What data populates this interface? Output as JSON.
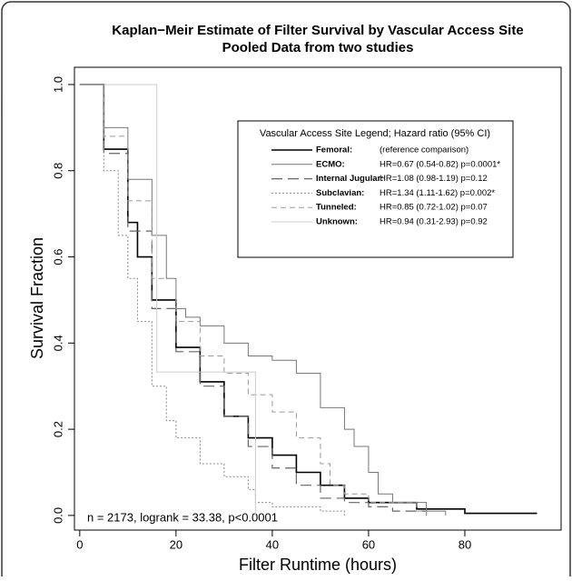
{
  "chart_data": {
    "type": "step",
    "title": "Kaplan−Meir Estimate of Filter Survival by Vascular Access Site",
    "subtitle": "Pooled Data from two studies",
    "x_label": "Filter Runtime (hours)",
    "y_label": "Survival Fraction",
    "annotation": "n = 2173, logrank = 33.38, p<0.0001",
    "legend_title": "Vascular Access Site Legend; Hazard ratio (95% CI)",
    "legend_position": "upper right",
    "xlim": [
      -1.1,
      100
    ],
    "xticks": [
      0,
      20,
      40,
      60,
      80
    ],
    "ylim": [
      -0.034,
      1.04
    ],
    "yticks": [
      {
        "value": 0,
        "label": "0.0"
      },
      {
        "value": 0.2,
        "label": "0.2"
      },
      {
        "value": 0.4,
        "label": "0.4"
      },
      {
        "value": 0.6,
        "label": "0.6"
      },
      {
        "value": 0.8,
        "label": "0.8"
      },
      {
        "value": 1,
        "label": "1.0"
      }
    ],
    "series": [
      {
        "name": "Femoral:",
        "hr": "(reference comparison)",
        "color": "#000000",
        "width": 1.6,
        "dash": "none",
        "x": [
          0,
          5,
          10,
          12,
          15,
          20,
          25,
          30,
          35,
          40,
          45,
          50,
          55,
          60,
          70,
          80,
          95
        ],
        "values": [
          1,
          0.85,
          0.68,
          0.6,
          0.5,
          0.39,
          0.31,
          0.23,
          0.18,
          0.14,
          0.1,
          0.07,
          0.04,
          0.03,
          0.015,
          0.005,
          0.005
        ]
      },
      {
        "name": "ECMO:",
        "hr": "HR=0.67 (0.54-0.82) p=0.0001*",
        "color": "#777777",
        "width": 1,
        "dash": "none",
        "x": [
          0,
          5,
          10,
          15,
          18,
          20,
          22,
          25,
          30,
          35,
          40,
          45,
          50,
          55,
          57,
          60,
          62,
          65,
          72,
          76
        ],
        "values": [
          1,
          0.9,
          0.78,
          0.65,
          0.55,
          0.48,
          0.46,
          0.44,
          0.4,
          0.37,
          0.36,
          0.33,
          0.25,
          0.2,
          0.16,
          0.1,
          0.05,
          0.03,
          0.01,
          0
        ]
      },
      {
        "name": "Internal Jugular:",
        "hr": "HR=1.08 (0.98-1.19) p=0.12",
        "color": "#666666",
        "width": 1.2,
        "dash": "12 6",
        "x": [
          0,
          5,
          10,
          15,
          20,
          25,
          30,
          35,
          40,
          45,
          50,
          55,
          60,
          65,
          72
        ],
        "values": [
          1,
          0.84,
          0.66,
          0.48,
          0.38,
          0.3,
          0.23,
          0.16,
          0.11,
          0.07,
          0.04,
          0.03,
          0.02,
          0.01,
          0
        ]
      },
      {
        "name": "Subclavian:",
        "hr": "HR=1.34 (1.11-1.62) p=0.002*",
        "color": "#888888",
        "width": 1,
        "dash": "2 2",
        "x": [
          0,
          5,
          8,
          10,
          12,
          15,
          18,
          20,
          25,
          30,
          35,
          36.5,
          40,
          50,
          55
        ],
        "values": [
          1,
          0.8,
          0.65,
          0.55,
          0.45,
          0.3,
          0.22,
          0.18,
          0.12,
          0.09,
          0.06,
          0.03,
          0.02,
          0.01,
          0
        ]
      },
      {
        "name": "Tunneled:",
        "hr": "HR=0.85 (0.72-1.02) p=0.07",
        "color": "#999999",
        "width": 1,
        "dash": "6 4",
        "x": [
          0,
          5,
          10,
          15,
          20,
          25,
          30,
          35,
          40,
          45,
          50,
          52,
          55,
          60,
          70,
          72
        ],
        "values": [
          1,
          0.88,
          0.73,
          0.55,
          0.45,
          0.37,
          0.33,
          0.28,
          0.24,
          0.18,
          0.12,
          0.07,
          0.05,
          0.03,
          0.01,
          0
        ]
      },
      {
        "name": "Unknown:",
        "hr": "HR=0.94 (0.31-2.93) p=0.92",
        "color": "#cccccc",
        "width": 1,
        "dash": "none",
        "x": [
          0,
          16,
          36.5
        ],
        "values": [
          1,
          0.333,
          0
        ]
      }
    ]
  }
}
